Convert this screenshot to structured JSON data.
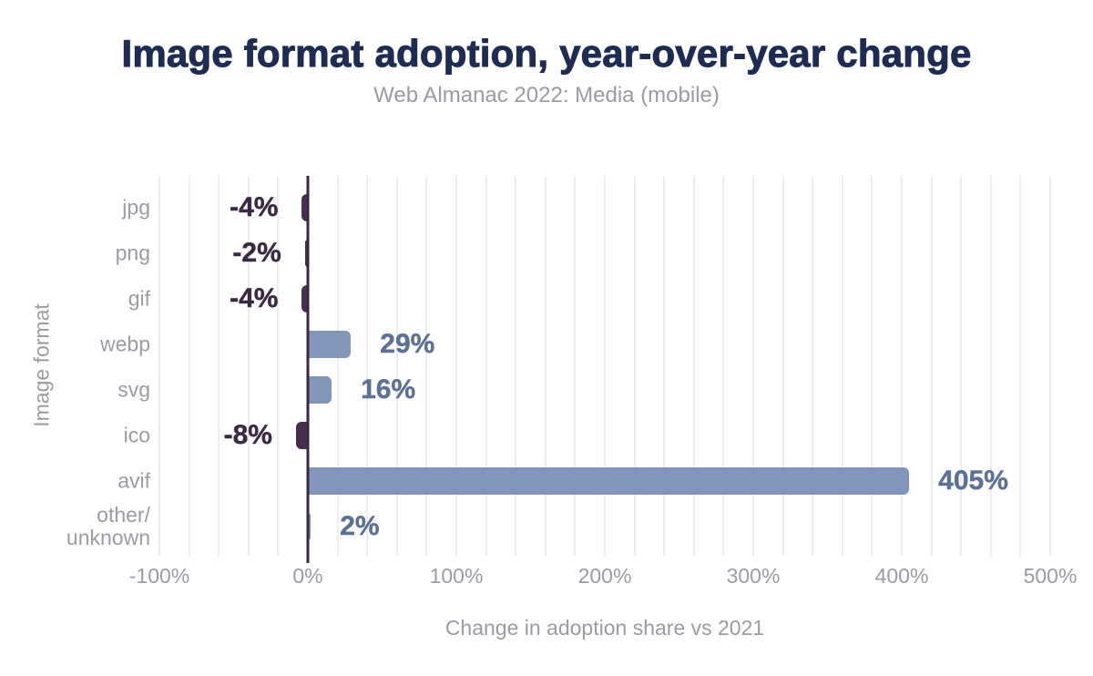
{
  "chart_data": {
    "type": "bar",
    "orientation": "horizontal",
    "title": "Image format adoption, year-over-year change",
    "subtitle": "Web Almanac 2022: Media (mobile)",
    "xlabel": "Change in adoption share vs 2021",
    "ylabel": "Image format",
    "categories": [
      "jpg",
      "png",
      "gif",
      "webp",
      "svg",
      "ico",
      "avif",
      "other/\nunknown"
    ],
    "values": [
      -4,
      -2,
      -4,
      29,
      16,
      -8,
      405,
      2
    ],
    "value_labels": [
      "-4%",
      "-2%",
      "-4%",
      "29%",
      "16%",
      "-8%",
      "405%",
      "2%"
    ],
    "xlim": [
      -100,
      500
    ],
    "x_tick_values": [
      -100,
      0,
      100,
      200,
      300,
      400,
      500
    ],
    "x_tick_labels": [
      "-100%",
      "0%",
      "100%",
      "200%",
      "300%",
      "400%",
      "500%"
    ],
    "grid": {
      "minor_step_pct": 20,
      "on": true,
      "color": "#ededed"
    },
    "legend": {
      "shown": false
    },
    "colors": {
      "positive_bar": "#8296ba",
      "negative_bar": "#452f4d",
      "positive_label": "#5d7195",
      "negative_label": "#3a2942",
      "axis_line": "#3a2742",
      "title_text": "#1e2c54",
      "muted_text": "#9a9ca3",
      "background": "#ffffff"
    }
  }
}
